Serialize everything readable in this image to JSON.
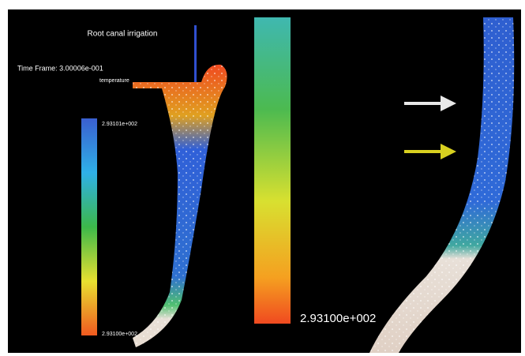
{
  "title": "Root canal irrigation",
  "time_frame": "Time Frame: 3.00006e-001",
  "legend": {
    "label": "temperature",
    "max": "2.93101e+002",
    "min": "2.93100e+002"
  },
  "zoom_legend": {
    "min": "2.93100e+002"
  }
}
